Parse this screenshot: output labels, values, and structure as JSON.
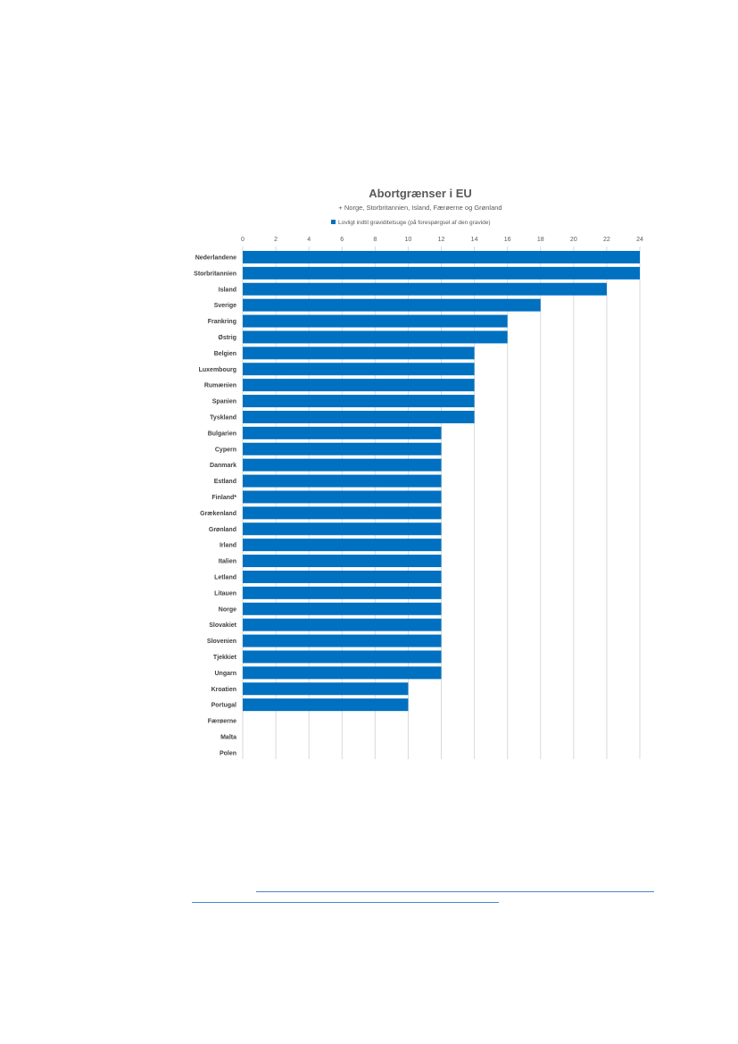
{
  "colors": {
    "bar": "#0070c0",
    "grid": "#d9d9d9",
    "link": "#4a86c8"
  },
  "chart_data": {
    "type": "bar",
    "orientation": "horizontal",
    "title": "Abortgrænser i EU",
    "subtitle": "+ Norge, Storbritannien, Island, Færøerne og Grønland",
    "xlim": [
      0,
      24
    ],
    "xticks": [
      0,
      2,
      4,
      6,
      8,
      10,
      12,
      14,
      16,
      18,
      20,
      22,
      24
    ],
    "grid": true,
    "legend_position": "top",
    "series": [
      {
        "name": "Lovligt indtil graviditetsuge (på forespørgsel af den gravide)",
        "values": [
          24,
          24,
          22,
          18,
          16,
          16,
          14,
          14,
          14,
          14,
          14,
          12,
          12,
          12,
          12,
          12,
          12,
          12,
          12,
          12,
          12,
          12,
          12,
          12,
          12,
          12,
          12,
          10,
          10,
          0,
          0,
          0
        ]
      }
    ],
    "categories": [
      "Nederlandene",
      "Storbritannien",
      "Island",
      "Sverige",
      "Frankring",
      "Østrig",
      "Belgien",
      "Luxembourg",
      "Rumænien",
      "Spanien",
      "Tyskland",
      "Bulgarien",
      "Cypern",
      "Danmark",
      "Estland",
      "Finland*",
      "Grækenland",
      "Grønland",
      "Irland",
      "Italien",
      "Letland",
      "Litauen",
      "Norge",
      "Slovakiet",
      "Slovenien",
      "Tjekkiet",
      "Ungarn",
      "Kroatien",
      "Portugal",
      "Færøerne",
      "Malta",
      "Polen"
    ]
  }
}
